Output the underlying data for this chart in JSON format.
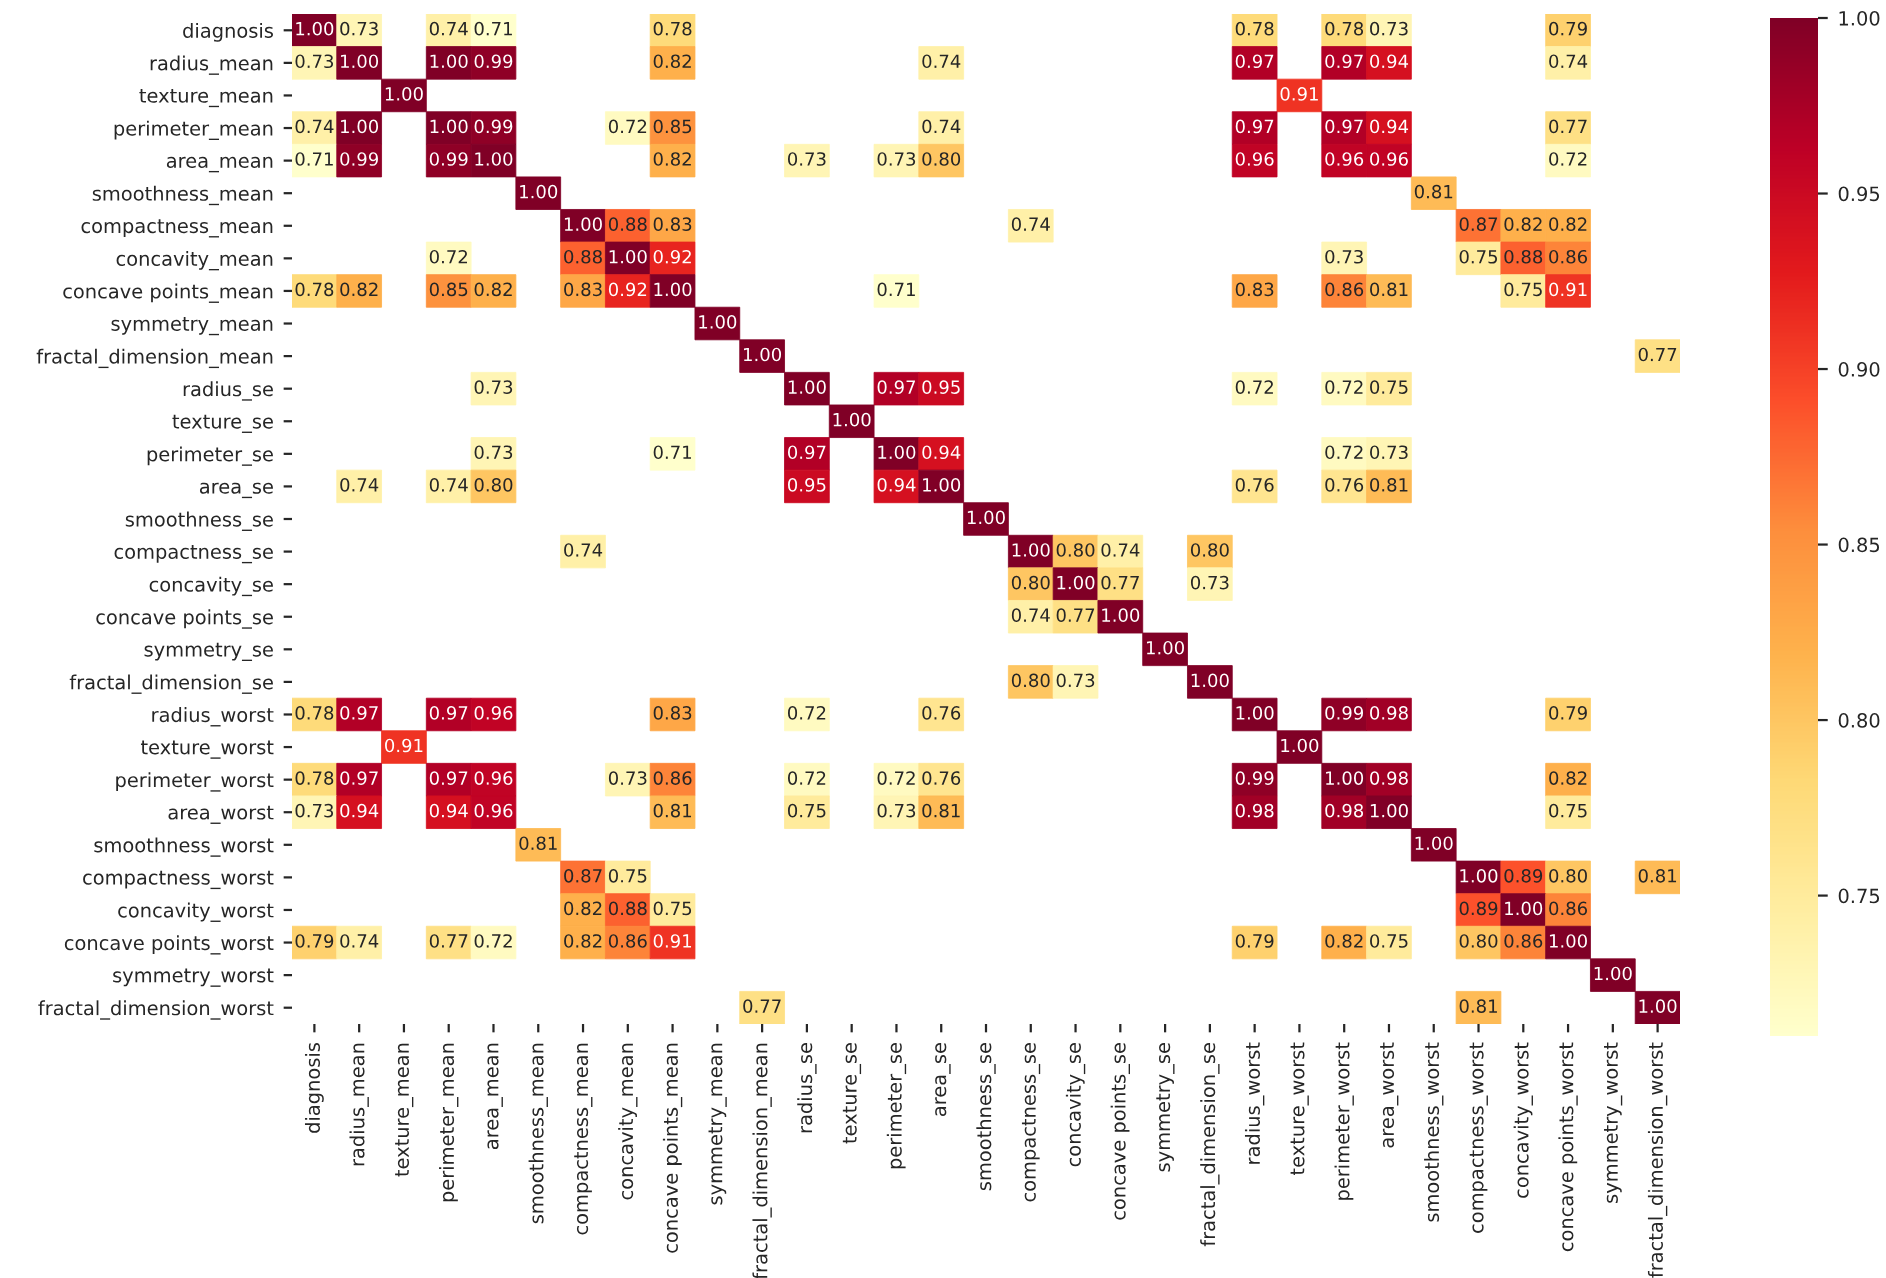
{
  "chart_data": {
    "type": "heatmap",
    "categories": [
      "diagnosis",
      "radius_mean",
      "texture_mean",
      "perimeter_mean",
      "area_mean",
      "smoothness_mean",
      "compactness_mean",
      "concavity_mean",
      "concave points_mean",
      "symmetry_mean",
      "fractal_dimension_mean",
      "radius_se",
      "texture_se",
      "perimeter_se",
      "area_se",
      "smoothness_se",
      "compactness_se",
      "concavity_se",
      "concave points_se",
      "symmetry_se",
      "fractal_dimension_se",
      "radius_worst",
      "texture_worst",
      "perimeter_worst",
      "area_worst",
      "smoothness_worst",
      "compactness_worst",
      "concavity_worst",
      "concave points_worst",
      "symmetry_worst",
      "fractal_dimension_worst"
    ],
    "y_categories": [
      "diagnosis",
      "radius_mean",
      "texture_mean",
      "perimeter_mean",
      "area_mean",
      "smoothness_mean",
      "compactness_mean",
      "concavity_mean",
      "concave points_mean",
      "symmetry_mean",
      "fractal_dimension_mean",
      "radius_se",
      "texture_se",
      "perimeter_se",
      "area_se",
      "smoothness_se",
      "compactness_se",
      "concavity_se",
      "concave points_se",
      "symmetry_se",
      "fractal_dimension_se",
      "radius_worst",
      "texture_worst",
      "perimeter_worst",
      "area_worst",
      "smoothness_worst",
      "compactness_worst",
      "concavity_worst",
      "concave points_worst",
      "symmetry_worst",
      "fractal_dimension_worst"
    ],
    "cells": [
      [
        1.0,
        0.73,
        null,
        0.74,
        0.71,
        null,
        null,
        null,
        0.78,
        null,
        null,
        null,
        null,
        null,
        null,
        null,
        null,
        null,
        null,
        null,
        null,
        0.78,
        null,
        0.78,
        0.73,
        null,
        null,
        null,
        0.79,
        null,
        null
      ],
      [
        0.73,
        1.0,
        null,
        1.0,
        0.99,
        null,
        null,
        null,
        0.82,
        null,
        null,
        null,
        null,
        null,
        0.74,
        null,
        null,
        null,
        null,
        null,
        null,
        0.97,
        null,
        0.97,
        0.94,
        null,
        null,
        null,
        0.74,
        null,
        null
      ],
      [
        null,
        null,
        1.0,
        null,
        null,
        null,
        null,
        null,
        null,
        null,
        null,
        null,
        null,
        null,
        null,
        null,
        null,
        null,
        null,
        null,
        null,
        null,
        0.91,
        null,
        null,
        null,
        null,
        null,
        null,
        null,
        null
      ],
      [
        0.74,
        1.0,
        null,
        1.0,
        0.99,
        null,
        null,
        0.72,
        0.85,
        null,
        null,
        null,
        null,
        null,
        0.74,
        null,
        null,
        null,
        null,
        null,
        null,
        0.97,
        null,
        0.97,
        0.94,
        null,
        null,
        null,
        0.77,
        null,
        null
      ],
      [
        0.71,
        0.99,
        null,
        0.99,
        1.0,
        null,
        null,
        null,
        0.82,
        null,
        null,
        0.73,
        null,
        0.73,
        0.8,
        null,
        null,
        null,
        null,
        null,
        null,
        0.96,
        null,
        0.96,
        0.96,
        null,
        null,
        null,
        0.72,
        null,
        null
      ],
      [
        null,
        null,
        null,
        null,
        null,
        1.0,
        null,
        null,
        null,
        null,
        null,
        null,
        null,
        null,
        null,
        null,
        null,
        null,
        null,
        null,
        null,
        null,
        null,
        null,
        null,
        0.81,
        null,
        null,
        null,
        null,
        null
      ],
      [
        null,
        null,
        null,
        null,
        null,
        null,
        1.0,
        0.88,
        0.83,
        null,
        null,
        null,
        null,
        null,
        null,
        null,
        0.74,
        null,
        null,
        null,
        null,
        null,
        null,
        null,
        null,
        null,
        0.87,
        0.82,
        0.82,
        null,
        null
      ],
      [
        null,
        null,
        null,
        0.72,
        null,
        null,
        0.88,
        1.0,
        0.92,
        null,
        null,
        null,
        null,
        null,
        null,
        null,
        null,
        null,
        null,
        null,
        null,
        null,
        null,
        0.73,
        null,
        null,
        0.75,
        0.88,
        0.86,
        null,
        null
      ],
      [
        0.78,
        0.82,
        null,
        0.85,
        0.82,
        null,
        0.83,
        0.92,
        1.0,
        null,
        null,
        null,
        null,
        0.71,
        null,
        null,
        null,
        null,
        null,
        null,
        null,
        0.83,
        null,
        0.86,
        0.81,
        null,
        null,
        0.75,
        0.91,
        null,
        null
      ],
      [
        null,
        null,
        null,
        null,
        null,
        null,
        null,
        null,
        null,
        1.0,
        null,
        null,
        null,
        null,
        null,
        null,
        null,
        null,
        null,
        null,
        null,
        null,
        null,
        null,
        null,
        null,
        null,
        null,
        null,
        null,
        null
      ],
      [
        null,
        null,
        null,
        null,
        null,
        null,
        null,
        null,
        null,
        null,
        1.0,
        null,
        null,
        null,
        null,
        null,
        null,
        null,
        null,
        null,
        null,
        null,
        null,
        null,
        null,
        null,
        null,
        null,
        null,
        null,
        0.77
      ],
      [
        null,
        null,
        null,
        null,
        0.73,
        null,
        null,
        null,
        null,
        null,
        null,
        1.0,
        null,
        0.97,
        0.95,
        null,
        null,
        null,
        null,
        null,
        null,
        0.72,
        null,
        0.72,
        0.75,
        null,
        null,
        null,
        null,
        null,
        null
      ],
      [
        null,
        null,
        null,
        null,
        null,
        null,
        null,
        null,
        null,
        null,
        null,
        null,
        1.0,
        null,
        null,
        null,
        null,
        null,
        null,
        null,
        null,
        null,
        null,
        null,
        null,
        null,
        null,
        null,
        null,
        null,
        null
      ],
      [
        null,
        null,
        null,
        null,
        0.73,
        null,
        null,
        null,
        0.71,
        null,
        null,
        0.97,
        null,
        1.0,
        0.94,
        null,
        null,
        null,
        null,
        null,
        null,
        null,
        null,
        0.72,
        0.73,
        null,
        null,
        null,
        null,
        null,
        null
      ],
      [
        null,
        0.74,
        null,
        0.74,
        0.8,
        null,
        null,
        null,
        null,
        null,
        null,
        0.95,
        null,
        0.94,
        1.0,
        null,
        null,
        null,
        null,
        null,
        null,
        0.76,
        null,
        0.76,
        0.81,
        null,
        null,
        null,
        null,
        null,
        null
      ],
      [
        null,
        null,
        null,
        null,
        null,
        null,
        null,
        null,
        null,
        null,
        null,
        null,
        null,
        null,
        null,
        1.0,
        null,
        null,
        null,
        null,
        null,
        null,
        null,
        null,
        null,
        null,
        null,
        null,
        null,
        null,
        null
      ],
      [
        null,
        null,
        null,
        null,
        null,
        null,
        0.74,
        null,
        null,
        null,
        null,
        null,
        null,
        null,
        null,
        null,
        1.0,
        0.8,
        0.74,
        null,
        0.8,
        null,
        null,
        null,
        null,
        null,
        null,
        null,
        null,
        null,
        null
      ],
      [
        null,
        null,
        null,
        null,
        null,
        null,
        null,
        null,
        null,
        null,
        null,
        null,
        null,
        null,
        null,
        null,
        0.8,
        1.0,
        0.77,
        null,
        0.73,
        null,
        null,
        null,
        null,
        null,
        null,
        null,
        null,
        null,
        null
      ],
      [
        null,
        null,
        null,
        null,
        null,
        null,
        null,
        null,
        null,
        null,
        null,
        null,
        null,
        null,
        null,
        null,
        0.74,
        0.77,
        1.0,
        null,
        null,
        null,
        null,
        null,
        null,
        null,
        null,
        null,
        null,
        null,
        null
      ],
      [
        null,
        null,
        null,
        null,
        null,
        null,
        null,
        null,
        null,
        null,
        null,
        null,
        null,
        null,
        null,
        null,
        null,
        null,
        null,
        1.0,
        null,
        null,
        null,
        null,
        null,
        null,
        null,
        null,
        null,
        null,
        null
      ],
      [
        null,
        null,
        null,
        null,
        null,
        null,
        null,
        null,
        null,
        null,
        null,
        null,
        null,
        null,
        null,
        null,
        0.8,
        0.73,
        null,
        null,
        1.0,
        null,
        null,
        null,
        null,
        null,
        null,
        null,
        null,
        null,
        null
      ],
      [
        0.78,
        0.97,
        null,
        0.97,
        0.96,
        null,
        null,
        null,
        0.83,
        null,
        null,
        0.72,
        null,
        null,
        0.76,
        null,
        null,
        null,
        null,
        null,
        null,
        1.0,
        null,
        0.99,
        0.98,
        null,
        null,
        null,
        0.79,
        null,
        null
      ],
      [
        null,
        null,
        0.91,
        null,
        null,
        null,
        null,
        null,
        null,
        null,
        null,
        null,
        null,
        null,
        null,
        null,
        null,
        null,
        null,
        null,
        null,
        null,
        1.0,
        null,
        null,
        null,
        null,
        null,
        null,
        null,
        null
      ],
      [
        0.78,
        0.97,
        null,
        0.97,
        0.96,
        null,
        null,
        0.73,
        0.86,
        null,
        null,
        0.72,
        null,
        0.72,
        0.76,
        null,
        null,
        null,
        null,
        null,
        null,
        0.99,
        null,
        1.0,
        0.98,
        null,
        null,
        null,
        0.82,
        null,
        null
      ],
      [
        0.73,
        0.94,
        null,
        0.94,
        0.96,
        null,
        null,
        null,
        0.81,
        null,
        null,
        0.75,
        null,
        0.73,
        0.81,
        null,
        null,
        null,
        null,
        null,
        null,
        0.98,
        null,
        0.98,
        1.0,
        null,
        null,
        null,
        0.75,
        null,
        null
      ],
      [
        null,
        null,
        null,
        null,
        null,
        0.81,
        null,
        null,
        null,
        null,
        null,
        null,
        null,
        null,
        null,
        null,
        null,
        null,
        null,
        null,
        null,
        null,
        null,
        null,
        null,
        1.0,
        null,
        null,
        null,
        null,
        null
      ],
      [
        null,
        null,
        null,
        null,
        null,
        null,
        0.87,
        0.75,
        null,
        null,
        null,
        null,
        null,
        null,
        null,
        null,
        null,
        null,
        null,
        null,
        null,
        null,
        null,
        null,
        null,
        null,
        1.0,
        0.89,
        0.8,
        null,
        0.81
      ],
      [
        null,
        null,
        null,
        null,
        null,
        null,
        0.82,
        0.88,
        0.75,
        null,
        null,
        null,
        null,
        null,
        null,
        null,
        null,
        null,
        null,
        null,
        null,
        null,
        null,
        null,
        null,
        null,
        0.89,
        1.0,
        0.86,
        null,
        null
      ],
      [
        0.79,
        0.74,
        null,
        0.77,
        0.72,
        null,
        0.82,
        0.86,
        0.91,
        null,
        null,
        null,
        null,
        null,
        null,
        null,
        null,
        null,
        null,
        null,
        null,
        0.79,
        null,
        0.82,
        0.75,
        null,
        0.8,
        0.86,
        1.0,
        null,
        null
      ],
      [
        null,
        null,
        null,
        null,
        null,
        null,
        null,
        null,
        null,
        null,
        null,
        null,
        null,
        null,
        null,
        null,
        null,
        null,
        null,
        null,
        null,
        null,
        null,
        null,
        null,
        null,
        null,
        null,
        null,
        1.0,
        null
      ],
      [
        null,
        null,
        null,
        null,
        null,
        null,
        null,
        null,
        null,
        null,
        0.77,
        null,
        null,
        null,
        null,
        null,
        null,
        null,
        null,
        null,
        null,
        null,
        null,
        null,
        null,
        null,
        0.81,
        null,
        null,
        null,
        1.0
      ]
    ],
    "clim": [
      0.71,
      1.0
    ],
    "cticks": [
      0.75,
      {
        "value": 0.8,
        "label": "0.80"
      },
      0.85,
      {
        "value": 0.9,
        "label": "0.90"
      },
      0.95,
      {
        "value": 1.0,
        "label": "1.00"
      }
    ],
    "cell_labels": [
      [
        "1.00",
        "0.73",
        null,
        "0.74",
        "0.71",
        null,
        null,
        null,
        "0.78",
        null,
        null,
        null,
        null,
        null,
        null,
        null,
        null,
        null,
        null,
        null,
        null,
        "0.78",
        null,
        "0.78",
        "0.73",
        null,
        null,
        null,
        "0.79",
        null,
        null
      ],
      [
        "0.73",
        "1.00",
        null,
        "1.00",
        "0.99",
        null,
        null,
        null,
        "0.82",
        null,
        null,
        null,
        null,
        null,
        "0.74",
        null,
        null,
        null,
        null,
        null,
        null,
        "0.97",
        null,
        "0.97",
        "0.94",
        null,
        null,
        null,
        "0.74",
        null,
        null
      ],
      [
        null,
        null,
        "1.00",
        null,
        null,
        null,
        null,
        null,
        null,
        null,
        null,
        null,
        null,
        null,
        null,
        null,
        null,
        null,
        null,
        null,
        null,
        null,
        "0.91",
        null,
        null,
        null,
        null,
        null,
        null,
        null,
        null
      ],
      [
        "0.74",
        "1.00",
        null,
        "1.00",
        "0.99",
        null,
        null,
        "0.72",
        "0.85",
        null,
        null,
        null,
        null,
        null,
        "0.74",
        null,
        null,
        null,
        null,
        null,
        null,
        "0.97",
        null,
        "0.97",
        "0.94",
        null,
        null,
        null,
        "0.77",
        null,
        null
      ],
      [
        "0.71",
        "0.99",
        null,
        "0.99",
        "1.00",
        null,
        null,
        null,
        "0.82",
        null,
        null,
        "0.73",
        null,
        "0.73",
        "0.80",
        null,
        null,
        null,
        null,
        null,
        null,
        "0.96",
        null,
        "0.96",
        "0.96",
        null,
        null,
        null,
        "0.72",
        null,
        null
      ],
      [
        null,
        null,
        null,
        null,
        null,
        "1.00",
        null,
        null,
        null,
        null,
        null,
        null,
        null,
        null,
        null,
        null,
        null,
        null,
        null,
        null,
        null,
        null,
        null,
        null,
        null,
        "0.81",
        null,
        null,
        null,
        null,
        null
      ],
      [
        null,
        null,
        null,
        null,
        null,
        null,
        "1.00",
        "0.88",
        "0.83",
        null,
        null,
        null,
        null,
        null,
        null,
        null,
        "0.74",
        null,
        null,
        null,
        null,
        null,
        null,
        null,
        null,
        null,
        "0.87",
        "0.82",
        "0.82",
        null,
        null
      ],
      [
        null,
        null,
        null,
        "0.72",
        null,
        null,
        "0.88",
        "1.00",
        "0.92",
        null,
        null,
        null,
        null,
        null,
        null,
        null,
        null,
        null,
        null,
        null,
        null,
        null,
        null,
        "0.73",
        null,
        null,
        "0.75",
        "0.88",
        "0.86",
        null,
        null
      ],
      [
        "0.78",
        "0.82",
        null,
        "0.85",
        "0.82",
        null,
        "0.83",
        "0.92",
        "1.00",
        null,
        null,
        null,
        null,
        "0.71",
        null,
        null,
        null,
        null,
        null,
        null,
        null,
        "0.83",
        null,
        "0.86",
        "0.81",
        null,
        null,
        "0.75",
        "0.91",
        null,
        null
      ],
      [
        null,
        null,
        null,
        null,
        null,
        null,
        null,
        null,
        null,
        "1.00",
        null,
        null,
        null,
        null,
        null,
        null,
        null,
        null,
        null,
        null,
        null,
        null,
        null,
        null,
        null,
        null,
        null,
        null,
        null,
        null,
        null
      ],
      [
        null,
        null,
        null,
        null,
        null,
        null,
        null,
        null,
        null,
        null,
        "1.00",
        null,
        null,
        null,
        null,
        null,
        null,
        null,
        null,
        null,
        null,
        null,
        null,
        null,
        null,
        null,
        null,
        null,
        null,
        null,
        "0.77"
      ],
      [
        null,
        null,
        null,
        null,
        "0.73",
        null,
        null,
        null,
        null,
        null,
        null,
        "1.00",
        null,
        "0.97",
        "0.95",
        null,
        null,
        null,
        null,
        null,
        null,
        "0.72",
        null,
        "0.72",
        "0.75",
        null,
        null,
        null,
        null,
        null,
        null
      ],
      [
        null,
        null,
        null,
        null,
        null,
        null,
        null,
        null,
        null,
        null,
        null,
        null,
        "1.00",
        null,
        null,
        null,
        null,
        null,
        null,
        null,
        null,
        null,
        null,
        null,
        null,
        null,
        null,
        null,
        null,
        null,
        null
      ],
      [
        null,
        null,
        null,
        null,
        "0.73",
        null,
        null,
        null,
        "0.71",
        null,
        null,
        "0.97",
        null,
        "1.00",
        "0.94",
        null,
        null,
        null,
        null,
        null,
        null,
        null,
        null,
        "0.72",
        "0.73",
        null,
        null,
        null,
        null,
        null,
        null
      ],
      [
        null,
        "0.74",
        null,
        "0.74",
        "0.80",
        null,
        null,
        null,
        null,
        null,
        null,
        "0.95",
        null,
        "0.94",
        "1.00",
        null,
        null,
        null,
        null,
        null,
        null,
        "0.76",
        null,
        "0.76",
        "0.81",
        null,
        null,
        null,
        null,
        null,
        null
      ],
      [
        null,
        null,
        null,
        null,
        null,
        null,
        null,
        null,
        null,
        null,
        null,
        null,
        null,
        null,
        null,
        "1.00",
        null,
        null,
        null,
        null,
        null,
        null,
        null,
        null,
        null,
        null,
        null,
        null,
        null,
        null,
        null
      ],
      [
        null,
        null,
        null,
        null,
        null,
        null,
        "0.74",
        null,
        null,
        null,
        null,
        null,
        null,
        null,
        null,
        null,
        "1.00",
        "0.80",
        "0.74",
        null,
        "0.80",
        null,
        null,
        null,
        null,
        null,
        null,
        null,
        null,
        null,
        null
      ],
      [
        null,
        null,
        null,
        null,
        null,
        null,
        null,
        null,
        null,
        null,
        null,
        null,
        null,
        null,
        null,
        null,
        "0.80",
        "1.00",
        "0.77",
        null,
        "0.73",
        null,
        null,
        null,
        null,
        null,
        null,
        null,
        null,
        null,
        null
      ],
      [
        null,
        null,
        null,
        null,
        null,
        null,
        null,
        null,
        null,
        null,
        null,
        null,
        null,
        null,
        null,
        null,
        "0.74",
        "0.77",
        "1.00",
        null,
        null,
        null,
        null,
        null,
        null,
        null,
        null,
        null,
        null,
        null,
        null
      ],
      [
        null,
        null,
        null,
        null,
        null,
        null,
        null,
        null,
        null,
        null,
        null,
        null,
        null,
        null,
        null,
        null,
        null,
        null,
        null,
        "1.00",
        null,
        null,
        null,
        null,
        null,
        null,
        null,
        null,
        null,
        null,
        null
      ],
      [
        null,
        null,
        null,
        null,
        null,
        null,
        null,
        null,
        null,
        null,
        null,
        null,
        null,
        null,
        null,
        null,
        "0.80",
        "0.73",
        null,
        null,
        "1.00",
        null,
        null,
        null,
        null,
        null,
        null,
        null,
        null,
        null,
        null
      ],
      [
        "0.78",
        "0.97",
        null,
        "0.97",
        "0.96",
        null,
        null,
        null,
        "0.83",
        null,
        null,
        "0.72",
        null,
        null,
        "0.76",
        null,
        null,
        null,
        null,
        null,
        null,
        "1.00",
        null,
        "0.99",
        "0.98",
        null,
        null,
        null,
        "0.79",
        null,
        null
      ],
      [
        null,
        null,
        "0.91",
        null,
        null,
        null,
        null,
        null,
        null,
        null,
        null,
        null,
        null,
        null,
        null,
        null,
        null,
        null,
        null,
        null,
        null,
        null,
        "1.00",
        null,
        null,
        null,
        null,
        null,
        null,
        null,
        null
      ],
      [
        "0.78",
        "0.97",
        null,
        "0.97",
        "0.96",
        null,
        null,
        "0.73",
        "0.86",
        null,
        null,
        "0.72",
        null,
        "0.72",
        "0.76",
        null,
        null,
        null,
        null,
        null,
        null,
        "0.99",
        null,
        "1.00",
        "0.98",
        null,
        null,
        null,
        "0.82",
        null,
        null
      ],
      [
        "0.73",
        "0.94",
        null,
        "0.94",
        "0.96",
        null,
        null,
        null,
        "0.81",
        null,
        null,
        "0.75",
        null,
        "0.73",
        "0.81",
        null,
        null,
        null,
        null,
        null,
        null,
        "0.98",
        null,
        "0.98",
        "1.00",
        null,
        null,
        null,
        "0.75",
        null,
        null
      ],
      [
        null,
        null,
        null,
        null,
        null,
        "0.81",
        null,
        null,
        null,
        null,
        null,
        null,
        null,
        null,
        null,
        null,
        null,
        null,
        null,
        null,
        null,
        null,
        null,
        null,
        null,
        "1.00",
        null,
        null,
        null,
        null,
        null
      ],
      [
        null,
        null,
        null,
        null,
        null,
        null,
        "0.87",
        "0.75",
        null,
        null,
        null,
        null,
        null,
        null,
        null,
        null,
        null,
        null,
        null,
        null,
        null,
        null,
        null,
        null,
        null,
        null,
        "1.00",
        "0.89",
        "0.80",
        null,
        "0.81"
      ],
      [
        null,
        null,
        null,
        null,
        null,
        null,
        "0.82",
        "0.88",
        "0.75",
        null,
        null,
        null,
        null,
        null,
        null,
        null,
        null,
        null,
        null,
        null,
        null,
        null,
        null,
        null,
        null,
        null,
        "0.89",
        "1.00",
        "0.86",
        null,
        null
      ],
      [
        "0.79",
        "0.74",
        null,
        "0.77",
        "0.72",
        null,
        "0.82",
        "0.86",
        "0.91",
        null,
        null,
        null,
        null,
        null,
        null,
        null,
        null,
        null,
        null,
        null,
        null,
        "0.79",
        null,
        "0.82",
        "0.75",
        null,
        "0.80",
        "0.86",
        "1.00",
        null,
        null
      ],
      [
        null,
        null,
        null,
        null,
        null,
        null,
        null,
        null,
        null,
        null,
        null,
        null,
        null,
        null,
        null,
        null,
        null,
        null,
        null,
        null,
        null,
        null,
        null,
        null,
        null,
        null,
        null,
        null,
        null,
        "1.00",
        null
      ],
      [
        null,
        null,
        null,
        null,
        null,
        null,
        null,
        null,
        null,
        null,
        "0.77",
        null,
        null,
        null,
        null,
        null,
        null,
        null,
        null,
        null,
        null,
        null,
        null,
        null,
        null,
        null,
        "0.81",
        null,
        null,
        null,
        "1.00"
      ]
    ],
    "data_labels": true,
    "grid": false
  }
}
